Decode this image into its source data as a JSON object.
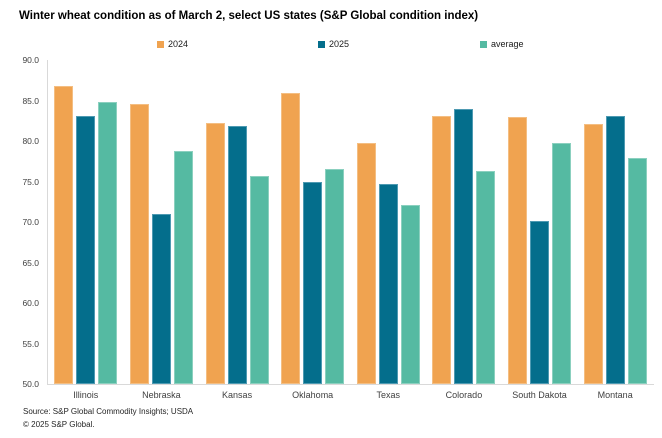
{
  "title": "Winter wheat condition as of March 2, select US states (S&P Global condition index)",
  "source_line": "Source: S&P Global Commodity Insights; USDA",
  "copyright_line": "© 2025 S&P Global.",
  "colors": {
    "series_2024": "#F0A350",
    "series_2025": "#046E8C",
    "series_average": "#55BAA2",
    "border_2024": "#F4BE82",
    "border_2025": "#4E9AB2",
    "border_average": "#8BD0BF",
    "axis_line": "#D9D9D9",
    "tick_text": "#404040",
    "title_text": "#000000"
  },
  "chart_data": {
    "type": "bar",
    "title": "Winter wheat condition as of March 2, select US states (S&P Global condition index)",
    "categories": [
      "Illinois",
      "Nebraska",
      "Kansas",
      "Oklahoma",
      "Texas",
      "Colorado",
      "South Dakota",
      "Montana"
    ],
    "series": [
      {
        "name": "2024",
        "color": "#F0A350",
        "border": "#F4BE82",
        "values": [
          86.8,
          84.6,
          82.2,
          85.9,
          79.7,
          83.1,
          83.0,
          82.1
        ]
      },
      {
        "name": "2025",
        "color": "#046E8C",
        "border": "#4E9AB2",
        "values": [
          83.1,
          71.0,
          81.8,
          75.0,
          74.7,
          84.0,
          70.1,
          83.1
        ]
      },
      {
        "name": "average",
        "color": "#55BAA2",
        "border": "#8BD0BF",
        "values": [
          84.8,
          78.8,
          75.7,
          76.5,
          72.1,
          76.3,
          79.7,
          77.9
        ]
      }
    ],
    "xlabel": "",
    "ylabel": "",
    "ylim": [
      50,
      90
    ],
    "y_tick_step": 5,
    "y_tick_decimals": 1,
    "grid": false,
    "legend_position": "top"
  }
}
